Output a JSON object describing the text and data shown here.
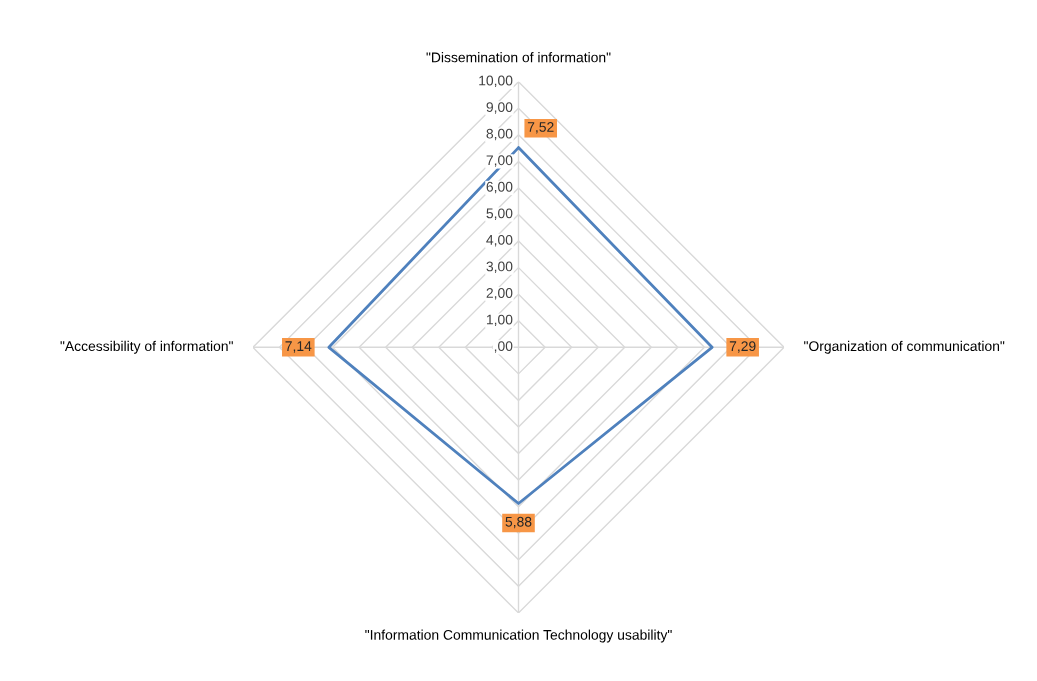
{
  "chart_data": {
    "type": "radar",
    "categories": [
      "\"Dissemination of information\"",
      "\"Organization of communication\"",
      "\"Information Communication Technology usability\"",
      "\"Accessibility of information\""
    ],
    "series": [
      {
        "color": "#4f81bd",
        "values": [
          7.52,
          7.29,
          5.88,
          7.14
        ],
        "value_labels": [
          "7,52",
          "7,29",
          "5,88",
          "7,14"
        ]
      }
    ],
    "ylim": [
      0,
      10
    ],
    "yticks": [
      {
        "value": 0,
        "label": ",00"
      },
      {
        "value": 1,
        "label": "1,00"
      },
      {
        "value": 2,
        "label": "2,00"
      },
      {
        "value": 3,
        "label": "3,00"
      },
      {
        "value": 4,
        "label": "4,00"
      },
      {
        "value": 5,
        "label": "5,00"
      },
      {
        "value": 6,
        "label": "6,00"
      },
      {
        "value": 7,
        "label": "7,00"
      },
      {
        "value": 8,
        "label": "8,00"
      },
      {
        "value": 9,
        "label": "9,00"
      },
      {
        "value": 10,
        "label": "10,00"
      }
    ],
    "grid": true,
    "legend": false,
    "marker": "none"
  }
}
